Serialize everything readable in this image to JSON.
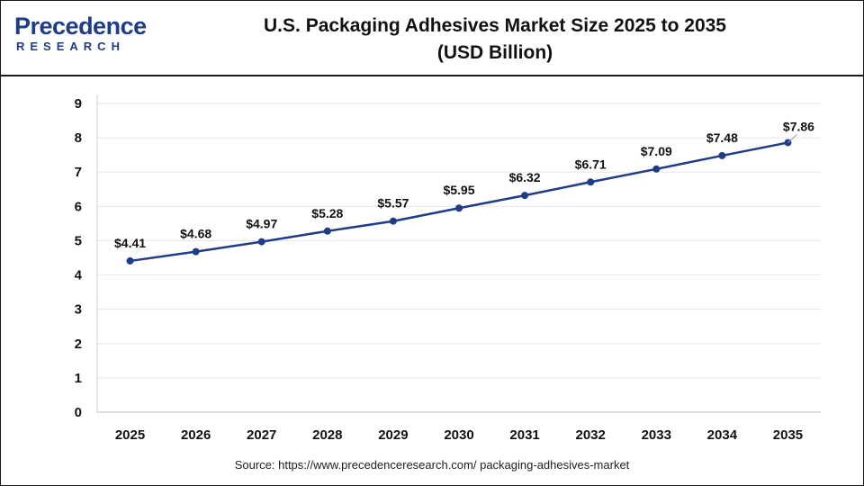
{
  "brand": {
    "logo_top": "Precedence",
    "logo_bottom": "RESEARCH"
  },
  "title_line1": "U.S. Packaging Adhesives Market Size 2025 to 2035",
  "title_line2": "(USD Billion)",
  "source": "Source: https://www.precedenceresearch.com/ packaging-adhesives-market",
  "colors": {
    "line": "#1f3c88",
    "brand": "#1f3c88",
    "grid": "#e6e6e6"
  },
  "chart_data": {
    "type": "line",
    "title": "U.S. Packaging Adhesives Market Size 2025 to 2035 (USD Billion)",
    "categories": [
      "2025",
      "2026",
      "2027",
      "2028",
      "2029",
      "2030",
      "2031",
      "2032",
      "2033",
      "2034",
      "2035"
    ],
    "values": [
      4.41,
      4.68,
      4.97,
      5.28,
      5.57,
      5.95,
      6.32,
      6.71,
      7.09,
      7.48,
      7.86
    ],
    "data_labels": [
      "$4.41",
      "$4.68",
      "$4.97",
      "$5.28",
      "$5.57",
      "$5.95",
      "$6.32",
      "$6.71",
      "$7.09",
      "$7.48",
      "$7.86"
    ],
    "y_ticks": [
      "0",
      "1",
      "2",
      "3",
      "4",
      "5",
      "6",
      "7",
      "8",
      "9"
    ],
    "ylim": [
      0,
      9
    ],
    "xlabel": "",
    "ylabel": "",
    "grid": true,
    "legend": "none"
  }
}
